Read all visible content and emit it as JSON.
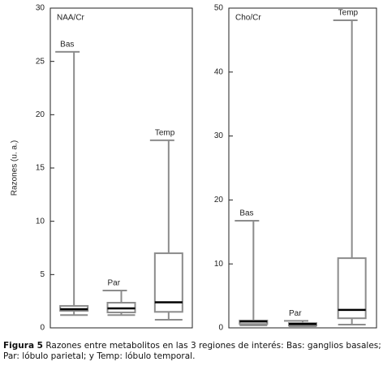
{
  "chart_data": [
    {
      "type": "box",
      "title": "NAA/Cr",
      "ylabel": "Razones (u. a.)",
      "categories": [
        "Bas",
        "Par",
        "Temp"
      ],
      "series": [
        {
          "min": [
            1.2,
            1.2,
            0.76
          ],
          "q1": [
            1.6,
            1.45,
            1.5
          ],
          "median": [
            1.75,
            1.83,
            2.4
          ],
          "q3": [
            2.06,
            2.36,
            7.0
          ],
          "max": [
            25.9,
            3.5,
            17.6
          ]
        }
      ],
      "ylim": [
        0,
        30
      ],
      "yticks": [
        0,
        5,
        10,
        15,
        20,
        25,
        30
      ],
      "color": "#8c8c8c",
      "median_color": "#000000"
    },
    {
      "type": "box",
      "title": "Cho/Cr",
      "categories": [
        "Bas",
        "Par",
        "Temp"
      ],
      "series": [
        {
          "min": [
            0.4,
            0.25,
            0.5
          ],
          "q1": [
            0.6,
            0.35,
            1.5
          ],
          "median": [
            1.0,
            0.6,
            2.8
          ],
          "q3": [
            1.15,
            0.75,
            10.9
          ],
          "max": [
            16.75,
            1.1,
            48.1
          ]
        }
      ],
      "ylim": [
        0,
        50
      ],
      "yticks": [
        0,
        10,
        20,
        30,
        40,
        50
      ],
      "color": "#8c8c8c",
      "median_color": "#000000"
    }
  ],
  "caption": {
    "label": "Figura 5",
    "text": "Razones entre metabolitos en las 3 regiones de interés: Bas: ganglios basales; Par: lóbulo parietal; y Temp: lóbulo temporal."
  }
}
